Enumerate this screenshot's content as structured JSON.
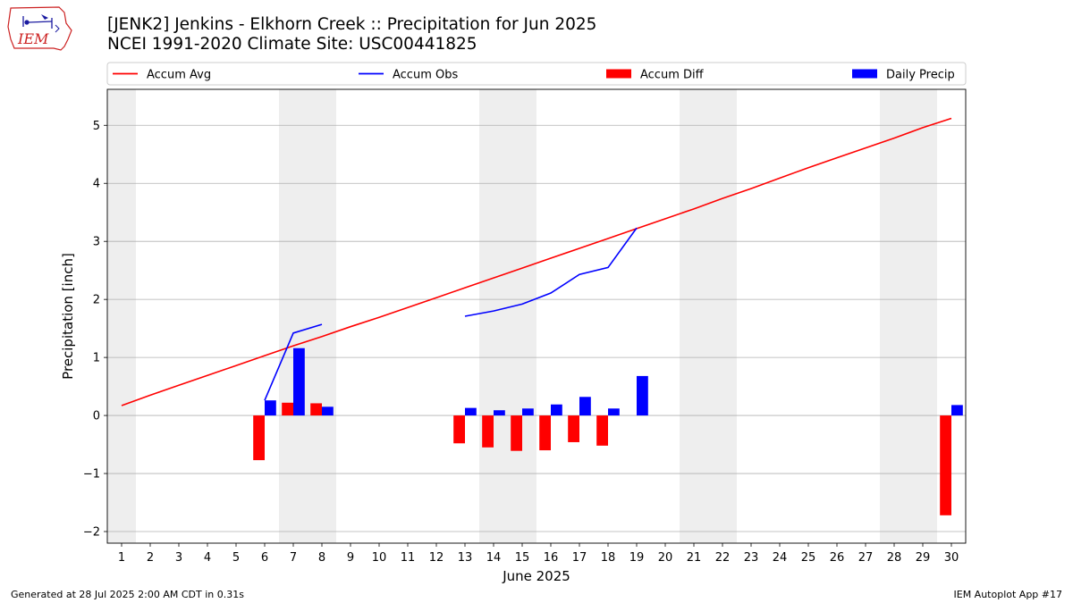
{
  "header": {
    "title_line1": "[JENK2] Jenkins - Elkhorn Creek :: Precipitation for Jun 2025",
    "title_line2": "NCEI 1991-2020 Climate Site: USC00441825",
    "logo_text": "IEM"
  },
  "footer": {
    "generated": "Generated at 28 Jul 2025 2:00 AM CDT in 0.31s",
    "app": "IEM Autoplot App #17"
  },
  "colors": {
    "avg": "#ff0000",
    "obs": "#0000ff",
    "diff": "#ff0000",
    "daily": "#0000ff",
    "weekend_shade": "#eeeeee",
    "grid": "#b0b0b0"
  },
  "chart_data": {
    "type": "bar",
    "xlabel": "June 2025",
    "ylabel": "Precipitation [inch]",
    "x": [
      1,
      2,
      3,
      4,
      5,
      6,
      7,
      8,
      9,
      10,
      11,
      12,
      13,
      14,
      15,
      16,
      17,
      18,
      19,
      20,
      21,
      22,
      23,
      24,
      25,
      26,
      27,
      28,
      29,
      30
    ],
    "xlim": [
      0.5,
      30.5
    ],
    "ylim": [
      -2.2,
      5.62
    ],
    "yticks": [
      -2,
      -1,
      0,
      1,
      2,
      3,
      4,
      5
    ],
    "ytick_labels": [
      "−2",
      "−1",
      "0",
      "1",
      "2",
      "3",
      "4",
      "5"
    ],
    "grid": "horizontal",
    "legend": "top, single row above plot",
    "shaded_days": [
      1,
      7,
      8,
      14,
      15,
      21,
      22,
      28,
      29
    ],
    "series": [
      {
        "name": "Accum Avg",
        "kind": "line",
        "color": "#ff0000",
        "x": [
          1,
          2,
          3,
          4,
          5,
          6,
          7,
          8,
          9,
          10,
          11,
          12,
          13,
          14,
          15,
          16,
          17,
          18,
          19,
          20,
          21,
          22,
          23,
          24,
          25,
          26,
          27,
          28,
          29,
          30
        ],
        "values": [
          0.17,
          0.35,
          0.52,
          0.69,
          0.86,
          1.03,
          1.2,
          1.36,
          1.53,
          1.69,
          1.86,
          2.03,
          2.2,
          2.37,
          2.54,
          2.71,
          2.88,
          3.05,
          3.22,
          3.39,
          3.56,
          3.74,
          3.91,
          4.09,
          4.27,
          4.44,
          4.61,
          4.78,
          4.96,
          5.12
        ]
      },
      {
        "name": "Accum Obs",
        "kind": "line",
        "color": "#0000ff",
        "segments": [
          {
            "x": [
              6,
              7,
              8
            ],
            "values": [
              0.26,
              1.42,
              1.57
            ]
          },
          {
            "x": [
              13,
              14,
              15,
              16,
              17,
              18,
              19
            ],
            "values": [
              1.71,
              1.8,
              1.92,
              2.11,
              2.43,
              2.55,
              3.23
            ]
          }
        ]
      },
      {
        "name": "Accum Diff",
        "kind": "bar",
        "color": "#ff0000",
        "x": [
          6,
          7,
          8,
          13,
          14,
          15,
          16,
          17,
          18,
          30
        ],
        "values": [
          -0.77,
          0.22,
          0.21,
          -0.48,
          -0.55,
          -0.61,
          -0.6,
          -0.46,
          -0.52,
          -1.72
        ]
      },
      {
        "name": "Daily Precip",
        "kind": "bar",
        "color": "#0000ff",
        "x": [
          6,
          7,
          8,
          13,
          14,
          15,
          16,
          17,
          18,
          19,
          30
        ],
        "values": [
          0.26,
          1.16,
          0.15,
          0.13,
          0.09,
          0.12,
          0.19,
          0.32,
          0.12,
          0.68,
          0.18
        ]
      }
    ]
  }
}
